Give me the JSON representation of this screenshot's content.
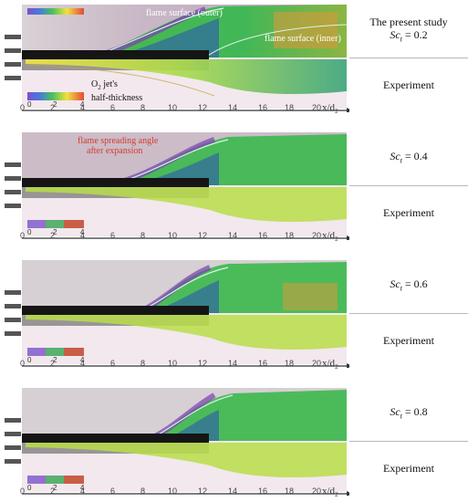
{
  "axis": {
    "ticks": [
      "0",
      "2",
      "4",
      "6",
      "8",
      "10",
      "12",
      "14",
      "16",
      "18",
      "20"
    ],
    "label_x": "x/d",
    "label_sub": "2"
  },
  "colorbar": {
    "ticks": [
      "0",
      "2",
      "4"
    ]
  },
  "annotations": {
    "flame_outer": "flame surface (outer)",
    "flame_inner": "flame surface (inner)",
    "o2_jet_line1": "O",
    "o2_jet_sub": "2",
    "o2_jet_line1_rest": " jet's",
    "o2_jet_line2": "half-thickness",
    "spread_line1": "flame spreading angle",
    "spread_line2": "after expansion"
  },
  "panels": [
    {
      "top_label_line1": "The present study",
      "sc_symbol": "Sc",
      "sc_sub": "t",
      "sc_value": " = 0.2",
      "bottom_label": "Experiment"
    },
    {
      "top_label_line1": "",
      "sc_symbol": "Sc",
      "sc_sub": "t",
      "sc_value": " = 0.4",
      "bottom_label": "Experiment"
    },
    {
      "top_label_line1": "",
      "sc_symbol": "Sc",
      "sc_sub": "t",
      "sc_value": " = 0.6",
      "bottom_label": "Experiment"
    },
    {
      "top_label_line1": "",
      "sc_symbol": "Sc",
      "sc_sub": "t",
      "sc_value": " = 0.8",
      "bottom_label": "Experiment"
    }
  ],
  "colors": {
    "cfd_green": "#3fba52",
    "cfd_orange": "#e3a23a",
    "cfd_purple": "#8a3fb8",
    "flame_line": "#cfeee8",
    "annotation_red": "#d83a2a"
  }
}
